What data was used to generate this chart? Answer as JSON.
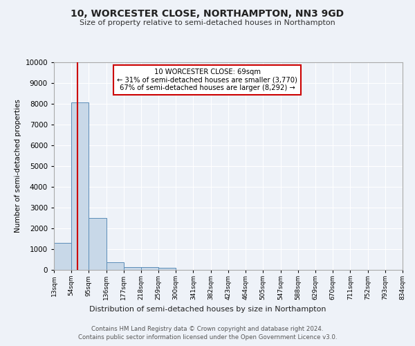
{
  "title": "10, WORCESTER CLOSE, NORTHAMPTON, NN3 9GD",
  "subtitle": "Size of property relative to semi-detached houses in Northampton",
  "xlabel_dist": "Distribution of semi-detached houses by size in Northampton",
  "ylabel": "Number of semi-detached properties",
  "footer1": "Contains HM Land Registry data © Crown copyright and database right 2024.",
  "footer2": "Contains public sector information licensed under the Open Government Licence v3.0.",
  "bin_edges": [
    13,
    54,
    95,
    136,
    177,
    218,
    259,
    300,
    341,
    382,
    423,
    464,
    505,
    547,
    588,
    629,
    670,
    711,
    752,
    793,
    834
  ],
  "bin_counts": [
    1300,
    8050,
    2500,
    380,
    150,
    120,
    100,
    0,
    0,
    0,
    0,
    0,
    0,
    0,
    0,
    0,
    0,
    0,
    0,
    0
  ],
  "property_size": 69,
  "annotation_title": "10 WORCESTER CLOSE: 69sqm",
  "annotation_line2": "← 31% of semi-detached houses are smaller (3,770)",
  "annotation_line3": "67% of semi-detached houses are larger (8,292) →",
  "bar_color": "#c8d8e8",
  "bar_edge_color": "#5b8db8",
  "red_line_color": "#cc0000",
  "annotation_box_color": "#ffffff",
  "annotation_box_edge": "#cc0000",
  "bg_color": "#eef2f8",
  "plot_bg_color": "#eef2f8",
  "grid_color": "#ffffff",
  "ylim": [
    0,
    10000
  ],
  "yticks": [
    0,
    1000,
    2000,
    3000,
    4000,
    5000,
    6000,
    7000,
    8000,
    9000,
    10000
  ]
}
